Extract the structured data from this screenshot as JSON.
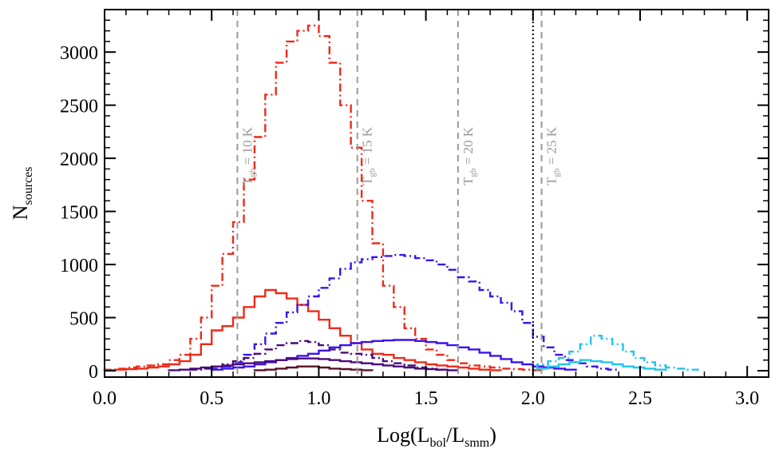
{
  "chart_data": {
    "type": "line",
    "xlabel": {
      "main": "Log(L",
      "sub1": "bol",
      "mid": "/L",
      "sub2": "smm",
      "end": ")"
    },
    "ylabel": {
      "main": "N",
      "sub": "sources"
    },
    "xlim": [
      0.0,
      3.1
    ],
    "ylim": [
      -60,
      3400
    ],
    "xticks": [
      0.0,
      0.5,
      1.0,
      1.5,
      2.0,
      2.5,
      3.0
    ],
    "xtick_labels": [
      "0.0",
      "0.5",
      "1.0",
      "1.5",
      "2.0",
      "2.5",
      "3.0"
    ],
    "yticks": [
      0,
      500,
      1000,
      1500,
      2000,
      2500,
      3000
    ],
    "ytick_labels": [
      "0",
      "500",
      "1000",
      "1500",
      "2000",
      "2500",
      "3000"
    ],
    "bin_width": 0.05,
    "vertical_lines": [
      {
        "x": 0.62,
        "label_main": "T",
        "label_sub": "gb",
        "label_rest": " = 10 K",
        "color": "#999999",
        "dash": "dashed"
      },
      {
        "x": 1.18,
        "label_main": "T",
        "label_sub": "gb",
        "label_rest": " = 15 K",
        "color": "#999999",
        "dash": "dashed"
      },
      {
        "x": 1.65,
        "label_main": "T",
        "label_sub": "gb",
        "label_rest": " = 20 K",
        "color": "#999999",
        "dash": "dashed"
      },
      {
        "x": 2.04,
        "label_main": "T",
        "label_sub": "gb",
        "label_rest": " = 25 K",
        "color": "#999999",
        "dash": "dashed"
      },
      {
        "x": 2.0,
        "label_main": "",
        "label_sub": "",
        "label_rest": "",
        "color": "#000000",
        "dash": "dotted"
      }
    ],
    "series": [
      {
        "color": "#ee2a1a",
        "dash": "dashdot",
        "x_start": 0.0,
        "values": [
          10,
          20,
          30,
          40,
          50,
          60,
          100,
          150,
          300,
          500,
          800,
          1100,
          1400,
          1800,
          2200,
          2600,
          2900,
          3100,
          3200,
          3250,
          3150,
          2900,
          2500,
          2100,
          1600,
          1200,
          800,
          600,
          400,
          300,
          200,
          150,
          100,
          70,
          50,
          40,
          30,
          20,
          15,
          10,
          5
        ]
      },
      {
        "color": "#ee2a1a",
        "dash": "solid",
        "x_start": 0.0,
        "values": [
          5,
          10,
          15,
          20,
          30,
          40,
          60,
          90,
          150,
          250,
          380,
          420,
          500,
          600,
          700,
          760,
          730,
          680,
          620,
          560,
          480,
          400,
          330,
          260,
          200,
          160,
          150,
          120,
          100,
          80,
          60,
          50,
          40,
          30,
          20,
          10,
          5
        ]
      },
      {
        "color": "#3a12ee",
        "dash": "dashdot",
        "x_start": 0.5,
        "values": [
          20,
          40,
          80,
          150,
          250,
          350,
          450,
          550,
          620,
          700,
          780,
          870,
          960,
          1020,
          1050,
          1070,
          1080,
          1090,
          1080,
          1060,
          1040,
          1000,
          950,
          880,
          840,
          760,
          700,
          640,
          560,
          450,
          320,
          220,
          150,
          100,
          70,
          40,
          20,
          10
        ]
      },
      {
        "color": "#3a12ee",
        "dash": "solid",
        "x_start": 0.5,
        "values": [
          10,
          20,
          30,
          40,
          60,
          80,
          100,
          120,
          140,
          160,
          190,
          220,
          240,
          260,
          270,
          280,
          285,
          290,
          290,
          280,
          270,
          260,
          240,
          220,
          200,
          170,
          140,
          110,
          80,
          60,
          40,
          30,
          20,
          10
        ]
      },
      {
        "color": "#4a0a7a",
        "dash": "dashdot",
        "x_start": 0.4,
        "values": [
          10,
          20,
          40,
          60,
          90,
          120,
          160,
          200,
          240,
          260,
          280,
          270,
          240,
          200,
          170,
          160,
          150,
          120,
          90,
          70,
          50,
          30,
          20,
          10
        ]
      },
      {
        "color": "#4a0a7a",
        "dash": "solid",
        "x_start": 0.3,
        "values": [
          5,
          10,
          20,
          30,
          40,
          50,
          60,
          70,
          80,
          90,
          100,
          110,
          115,
          115,
          110,
          100,
          90,
          80,
          70,
          60,
          50,
          40,
          30,
          20,
          15,
          10,
          5
        ]
      },
      {
        "color": "#5a1024",
        "dash": "solid",
        "x_start": 0.7,
        "values": [
          5,
          10,
          20,
          30,
          40,
          40,
          30,
          20,
          15,
          10,
          5
        ]
      },
      {
        "color": "#22c4ee",
        "dash": "dashdot",
        "x_start": 2.02,
        "values": [
          60,
          90,
          120,
          180,
          250,
          330,
          300,
          250,
          180,
          120,
          80,
          50,
          30,
          20,
          10
        ]
      },
      {
        "color": "#22c4ee",
        "dash": "solid",
        "x_start": 2.02,
        "values": [
          20,
          40,
          60,
          80,
          100,
          90,
          80,
          60,
          40,
          30,
          20,
          10
        ]
      }
    ]
  }
}
